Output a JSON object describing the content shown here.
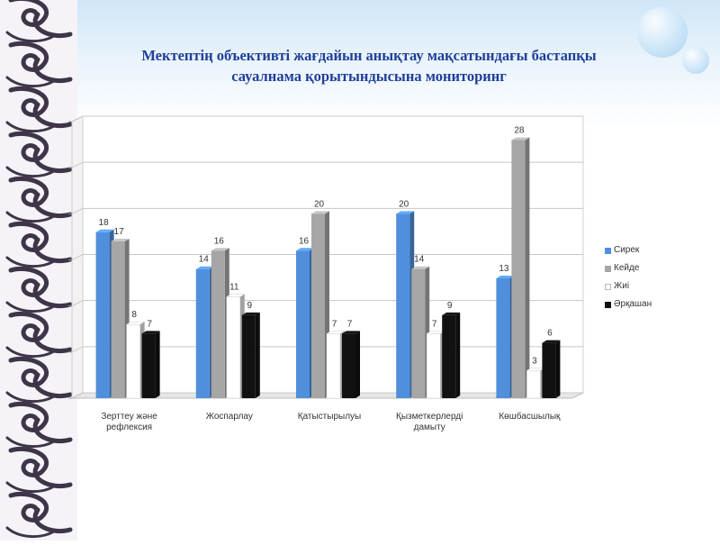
{
  "slide": {
    "title_line1": "Мектептің объективті жағдайын анықтау мақсатындағы бастапқы",
    "title_line2": "сауалнама қорытындысына мониторинг"
  },
  "chart_data": {
    "type": "bar",
    "title": "",
    "xlabel": "",
    "ylabel": "",
    "ylim": [
      0,
      30
    ],
    "grid": true,
    "legend_position": "right",
    "categories": [
      [
        "Зерттеу және",
        "рефлексия"
      ],
      [
        "Жоспарлау"
      ],
      [
        "Қатыстырылуы"
      ],
      [
        "Қызметкерлерді",
        "дамыту"
      ],
      [
        "Көшбасшылық"
      ]
    ],
    "series": [
      {
        "name": "Сирек",
        "color": "#4f8fdc",
        "values": [
          18,
          14,
          16,
          20,
          13
        ]
      },
      {
        "name": "Кейде",
        "color": "#a6a6a6",
        "values": [
          17,
          16,
          20,
          14,
          28
        ]
      },
      {
        "name": "Жиі",
        "color": "#ffffff",
        "values": [
          8,
          11,
          7,
          7,
          3
        ]
      },
      {
        "name": "Әрқашан",
        "color": "#111111",
        "values": [
          7,
          9,
          7,
          9,
          6
        ]
      }
    ]
  }
}
